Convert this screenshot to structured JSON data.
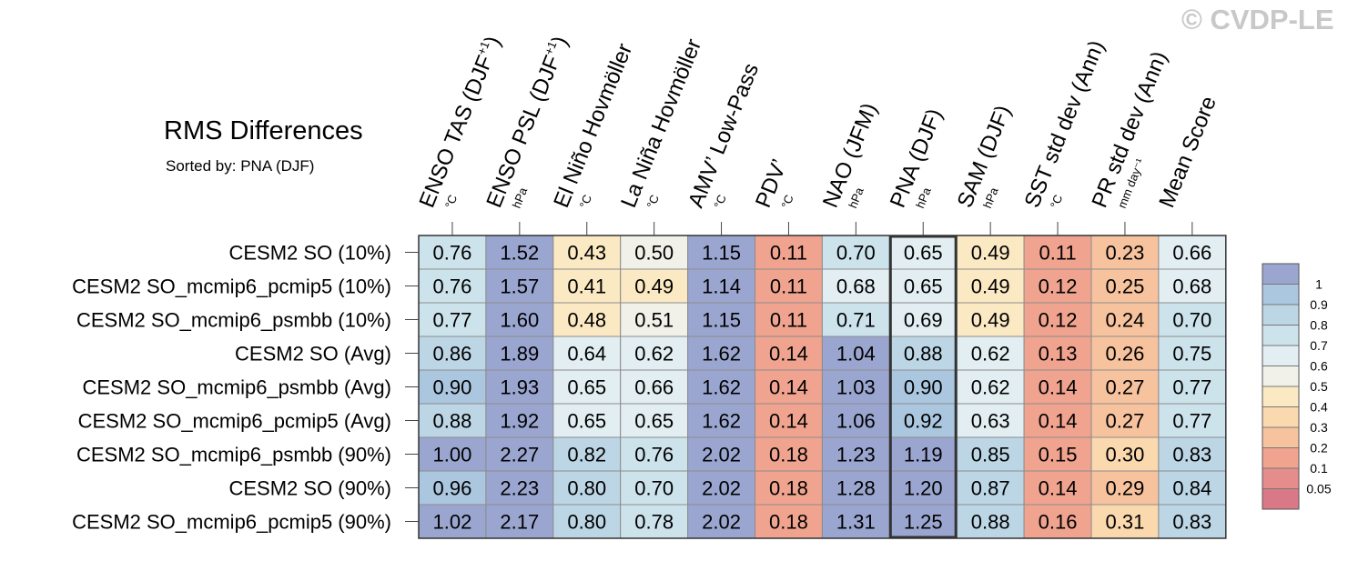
{
  "watermark": "© CVDP-LE",
  "chart_data": {
    "type": "heatmap",
    "title": "RMS Differences",
    "subtitle": "Sorted by: PNA (DJF)",
    "highlighted_column": "PNA (DJF)",
    "columns": [
      {
        "label": "ENSO TAS (DJF",
        "sup": "+1",
        "close": ")",
        "unit": "°C"
      },
      {
        "label": "ENSO PSL (DJF",
        "sup": "+1",
        "close": ")",
        "unit": "hPa"
      },
      {
        "label": "El Niño Hovmöller",
        "sup": "",
        "close": "",
        "unit": "°C"
      },
      {
        "label": "La Niña Hovmöller",
        "sup": "",
        "close": "",
        "unit": "°C"
      },
      {
        "label": "AMV’ Low-Pass",
        "sup": "",
        "close": "",
        "unit": "°C"
      },
      {
        "label": "PDV’",
        "sup": "",
        "close": "",
        "unit": "°C"
      },
      {
        "label": "NAO (JFM)",
        "sup": "",
        "close": "",
        "unit": "hPa"
      },
      {
        "label": "PNA (DJF)",
        "sup": "",
        "close": "",
        "unit": "hPa"
      },
      {
        "label": "SAM (DJF)",
        "sup": "",
        "close": "",
        "unit": "hPa"
      },
      {
        "label": "SST std dev (Ann)",
        "sup": "",
        "close": "",
        "unit": "°C"
      },
      {
        "label": "PR std dev (Ann)",
        "sup": "",
        "close": "",
        "unit": "mm day⁻¹"
      },
      {
        "label": "Mean Score",
        "sup": "",
        "close": "",
        "unit": ""
      }
    ],
    "rows": [
      "CESM2 SO (10%)",
      "CESM2 SO_mcmip6_pcmip5 (10%)",
      "CESM2 SO_mcmip6_psmbb (10%)",
      "CESM2 SO (Avg)",
      "CESM2 SO_mcmip6_psmbb (Avg)",
      "CESM2 SO_mcmip6_pcmip5 (Avg)",
      "CESM2 SO_mcmip6_psmbb (90%)",
      "CESM2 SO (90%)",
      "CESM2 SO_mcmip6_pcmip5 (90%)"
    ],
    "values": [
      [
        "0.76",
        "1.52",
        "0.43",
        "0.50",
        "1.15",
        "0.11",
        "0.70",
        "0.65",
        "0.49",
        "0.11",
        "0.23",
        "0.66"
      ],
      [
        "0.76",
        "1.57",
        "0.41",
        "0.49",
        "1.14",
        "0.11",
        "0.68",
        "0.65",
        "0.49",
        "0.12",
        "0.25",
        "0.68"
      ],
      [
        "0.77",
        "1.60",
        "0.48",
        "0.51",
        "1.15",
        "0.11",
        "0.71",
        "0.69",
        "0.49",
        "0.12",
        "0.24",
        "0.70"
      ],
      [
        "0.86",
        "1.89",
        "0.64",
        "0.62",
        "1.62",
        "0.14",
        "1.04",
        "0.88",
        "0.62",
        "0.13",
        "0.26",
        "0.75"
      ],
      [
        "0.90",
        "1.93",
        "0.65",
        "0.66",
        "1.62",
        "0.14",
        "1.03",
        "0.90",
        "0.62",
        "0.14",
        "0.27",
        "0.77"
      ],
      [
        "0.88",
        "1.92",
        "0.65",
        "0.65",
        "1.62",
        "0.14",
        "1.06",
        "0.92",
        "0.63",
        "0.14",
        "0.27",
        "0.77"
      ],
      [
        "1.00",
        "2.27",
        "0.82",
        "0.76",
        "2.02",
        "0.18",
        "1.23",
        "1.19",
        "0.85",
        "0.15",
        "0.30",
        "0.83"
      ],
      [
        "0.96",
        "2.23",
        "0.80",
        "0.70",
        "2.02",
        "0.18",
        "1.28",
        "1.20",
        "0.87",
        "0.14",
        "0.29",
        "0.84"
      ],
      [
        "1.02",
        "2.17",
        "0.80",
        "0.78",
        "2.02",
        "0.18",
        "1.31",
        "1.25",
        "0.88",
        "0.16",
        "0.31",
        "0.83"
      ]
    ],
    "colorbar": {
      "labels": [
        "1",
        "0.9",
        "0.8",
        "0.7",
        "0.6",
        "0.5",
        "0.4",
        "0.3",
        "0.2",
        "0.1",
        "0.05"
      ],
      "colors": [
        "#9aa6d0",
        "#abc6df",
        "#bdd6e6",
        "#cde3ec",
        "#e2eef2",
        "#f1f1ea",
        "#fbe9c3",
        "#fbd9ae",
        "#f7c39e",
        "#f0a48f",
        "#e58c8c",
        "#d97988"
      ]
    }
  }
}
